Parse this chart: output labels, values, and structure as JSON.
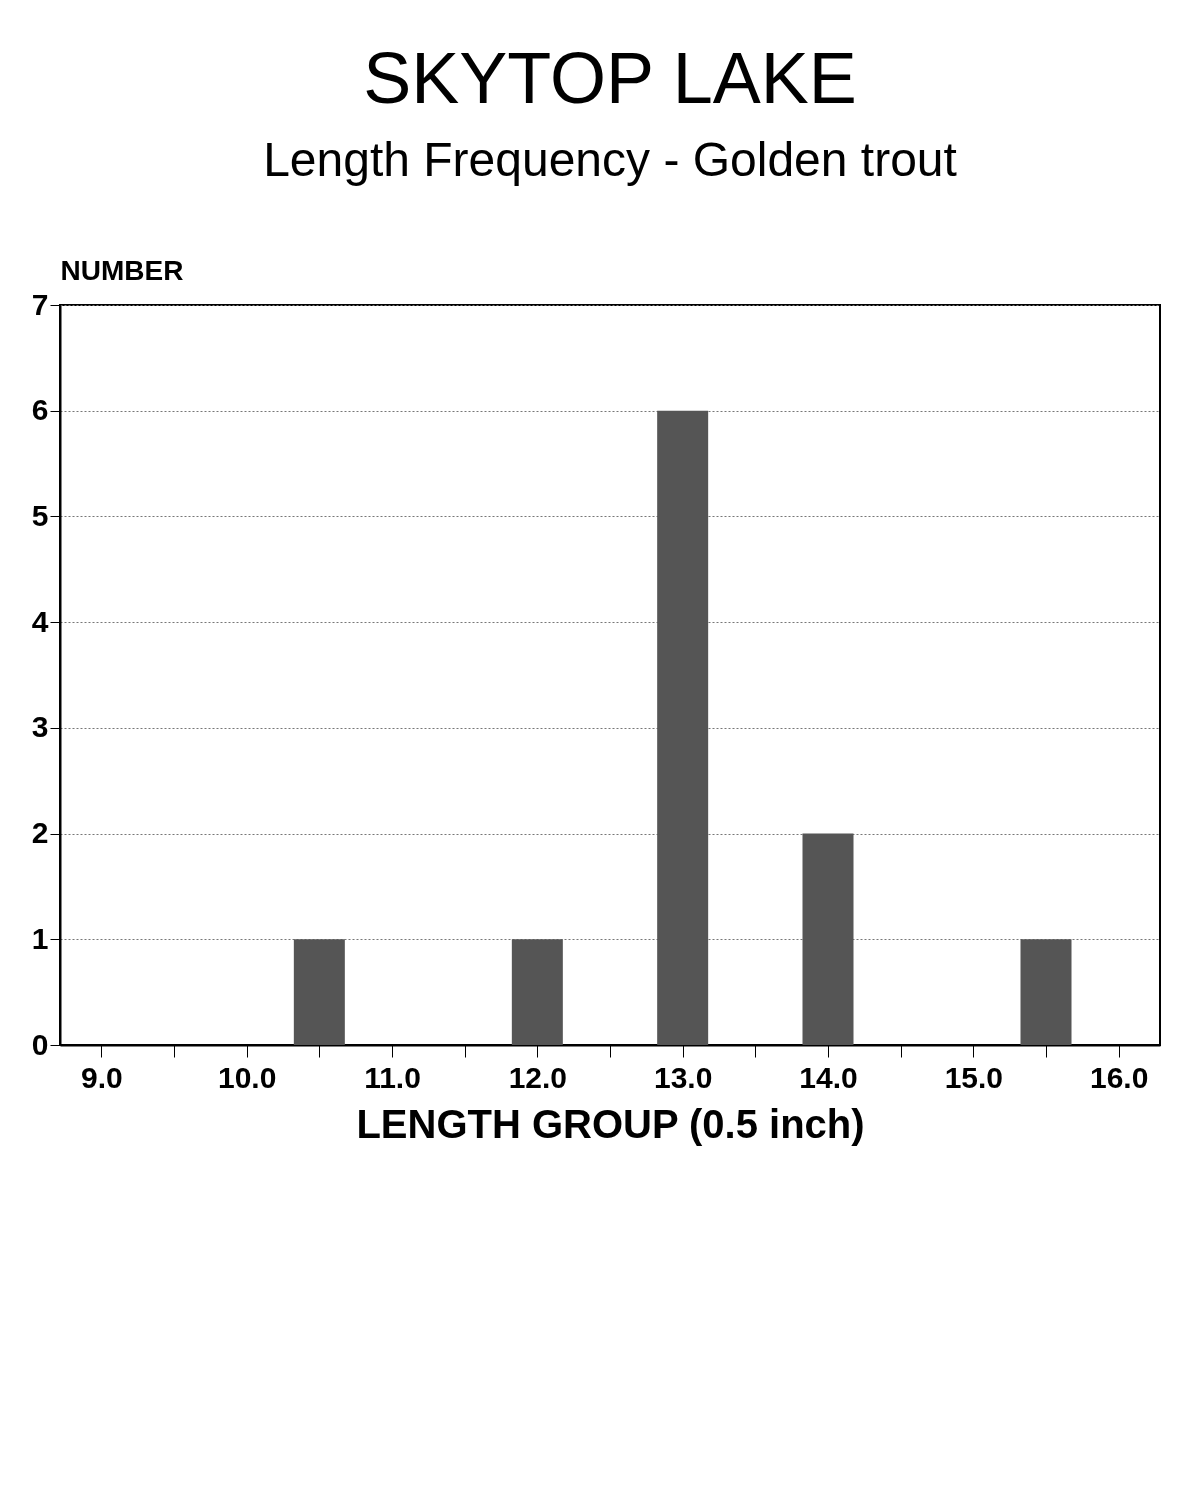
{
  "chart_data": {
    "type": "bar",
    "title": "SKYTOP LAKE",
    "subtitle": "Length Frequency  -  Golden trout",
    "xlabel": "LENGTH GROUP (0.5 inch)",
    "ylabel": "NUMBER",
    "x": [
      10.5,
      12.0,
      13.0,
      14.0,
      15.5
    ],
    "values": [
      1,
      1,
      6,
      2,
      1
    ],
    "color": "#555555",
    "xlim": [
      8.75,
      16.25
    ],
    "xticks": [
      {
        "value": 9,
        "label": "9.0"
      },
      {
        "value": 9.5,
        "label": null
      },
      {
        "value": 10,
        "label": "10.0"
      },
      {
        "value": 10.5,
        "label": null
      },
      {
        "value": 11,
        "label": "11.0"
      },
      {
        "value": 11.5,
        "label": null
      },
      {
        "value": 12,
        "label": "12.0"
      },
      {
        "value": 12.5,
        "label": null
      },
      {
        "value": 13,
        "label": "13.0"
      },
      {
        "value": 13.5,
        "label": null
      },
      {
        "value": 14,
        "label": "14.0"
      },
      {
        "value": 14.5,
        "label": null
      },
      {
        "value": 15,
        "label": "15.0"
      },
      {
        "value": 15.5,
        "label": null
      },
      {
        "value": 16,
        "label": "16.0"
      }
    ],
    "ylim": [
      0,
      7
    ],
    "yticks": [
      0,
      1,
      2,
      3,
      4,
      5,
      6,
      7
    ],
    "grid": "y"
  }
}
